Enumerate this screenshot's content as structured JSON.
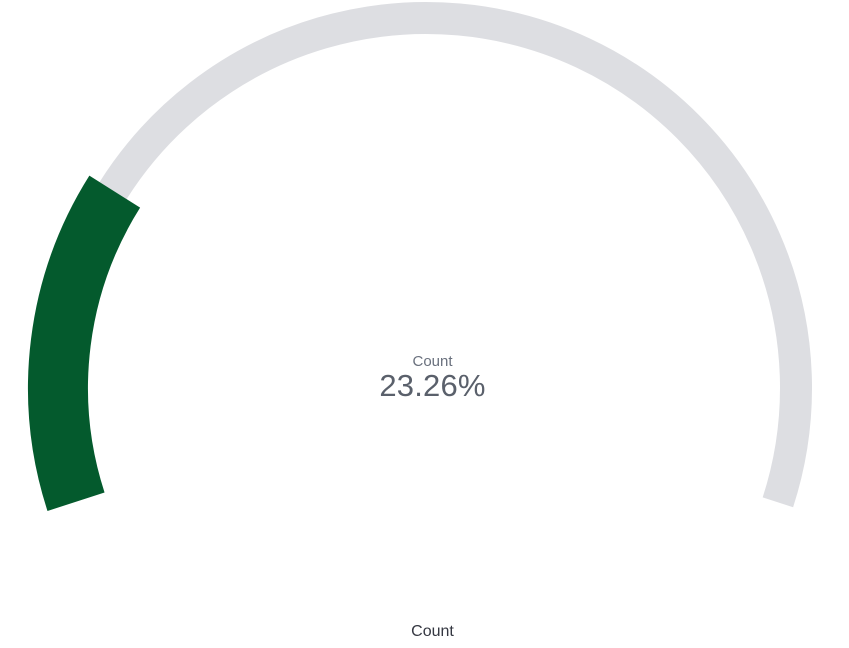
{
  "chart_data": {
    "type": "gauge",
    "metric_label": "Count",
    "value_display": "23.26%",
    "value_percent": 23.26,
    "range": [
      0,
      100
    ],
    "footer_label": "Count",
    "colors": {
      "fill": "#045a2d",
      "track": "#dddee2",
      "label": "#69707d",
      "value": "#5a606b",
      "footer": "#343741"
    }
  }
}
